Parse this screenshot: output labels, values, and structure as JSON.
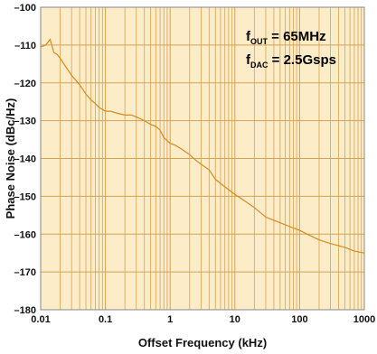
{
  "chart_data": {
    "type": "line",
    "title": "",
    "xlabel": "Offset Frequency (kHz)",
    "ylabel": "Phase Noise (dBc/Hz)",
    "x_scale": "log",
    "xlim": [
      0.01,
      1000
    ],
    "ylim": [
      -180,
      -100
    ],
    "x_ticks": [
      0.01,
      0.1,
      1,
      10,
      100,
      1000
    ],
    "x_tick_labels": [
      "0.01",
      "0.1",
      "1",
      "10",
      "100",
      "1000"
    ],
    "y_ticks": [
      -100,
      -110,
      -120,
      -130,
      -140,
      -150,
      -160,
      -170,
      -180
    ],
    "y_tick_labels": [
      "–100",
      "–110",
      "–120",
      "–130",
      "–140",
      "–150",
      "–160",
      "–170",
      "–180"
    ],
    "grid": true,
    "background_color": "#fcecc8",
    "grid_color": "#d3a355",
    "line_color": "#d98a1c",
    "annotations": [
      {
        "text": "f",
        "sub": "OUT",
        "rest": " = 65MHz"
      },
      {
        "text": "f",
        "sub": "DAC",
        "rest": " = 2.5Gsps"
      }
    ],
    "series": [
      {
        "x": [
          0.01,
          0.012,
          0.014,
          0.016,
          0.018,
          0.02,
          0.025,
          0.03,
          0.04,
          0.05,
          0.06,
          0.07,
          0.08,
          0.1,
          0.12,
          0.15,
          0.2,
          0.25,
          0.3,
          0.4,
          0.5,
          0.6,
          0.7,
          0.8,
          1,
          1.2,
          1.5,
          2,
          2.5,
          3,
          4,
          5,
          7,
          10,
          15,
          20,
          30,
          50,
          70,
          100,
          150,
          200,
          300,
          500,
          700,
          1000
        ],
        "y": [
          -110.5,
          -110,
          -108.5,
          -112,
          -112.5,
          -113.5,
          -116,
          -118,
          -120.5,
          -123,
          -124.5,
          -125.5,
          -126.5,
          -127.5,
          -127.5,
          -128,
          -128.5,
          -128.5,
          -129,
          -130,
          -131,
          -131.5,
          -132.5,
          -134.5,
          -136,
          -136.5,
          -137.5,
          -139,
          -140.5,
          -141.5,
          -143,
          -145.5,
          -147.5,
          -149.5,
          -151.5,
          -153,
          -155.5,
          -157,
          -158,
          -159,
          -160.5,
          -161.5,
          -162.5,
          -163.5,
          -164.5,
          -165
        ]
      }
    ]
  }
}
